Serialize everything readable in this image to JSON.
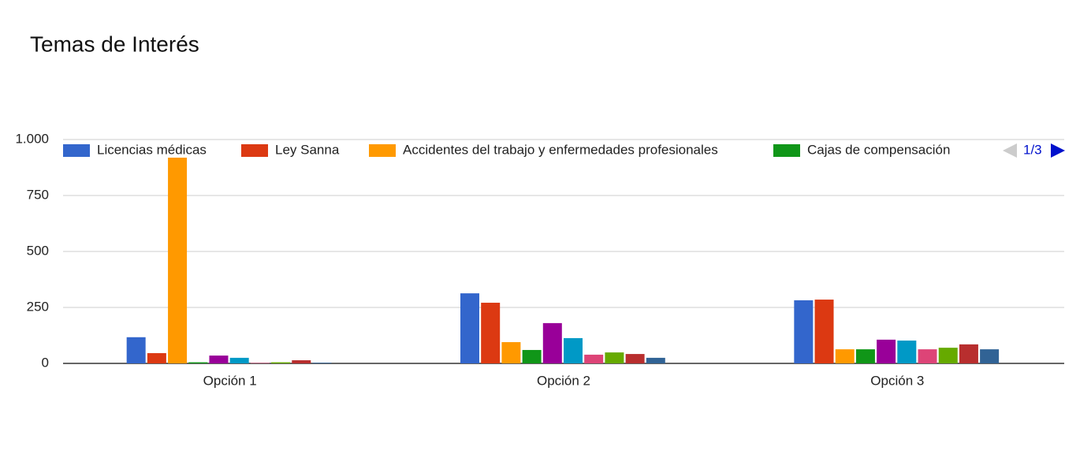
{
  "chart_data": {
    "type": "bar",
    "title": "Temas de Interés",
    "categories": [
      "Opción 1",
      "Opción 2",
      "Opción 3"
    ],
    "series": [
      {
        "name": "Licencias médicas",
        "color": "#3366cc",
        "values": [
          117,
          313,
          282
        ]
      },
      {
        "name": "Ley Sanna",
        "color": "#dc3912",
        "values": [
          46,
          271,
          285
        ]
      },
      {
        "name": "Accidentes del trabajo y enfermedades profesionales",
        "color": "#ff9900",
        "values": [
          919,
          95,
          63
        ]
      },
      {
        "name": "Cajas de compensación",
        "color": "#109618",
        "values": [
          5,
          60,
          63
        ]
      },
      {
        "color": "#990099",
        "values": [
          35,
          180,
          106
        ]
      },
      {
        "color": "#0099c6",
        "values": [
          25,
          113,
          102
        ]
      },
      {
        "color": "#dd4477",
        "values": [
          2,
          39,
          63
        ]
      },
      {
        "color": "#66aa00",
        "values": [
          5,
          49,
          70
        ]
      },
      {
        "color": "#b82e2e",
        "values": [
          14,
          42,
          85
        ]
      },
      {
        "color": "#316395",
        "values": [
          3,
          25,
          63
        ]
      }
    ],
    "ylim": [
      0,
      1000
    ],
    "yticks": [
      0,
      250,
      500,
      750,
      {
        "value": 1000,
        "label": "1.000"
      }
    ],
    "grid": true,
    "legend": "top",
    "legend_page": "1/3"
  }
}
